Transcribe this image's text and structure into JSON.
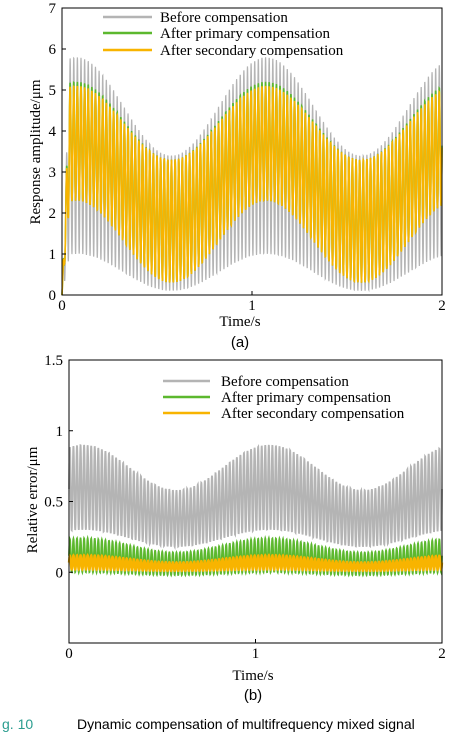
{
  "caption": {
    "fig_label": "g. 10",
    "text": "Dynamic compensation of multifrequency mixed signal",
    "fig_label_color": "#2a9d8f"
  },
  "legend_labels": {
    "before": "Before compensation",
    "primary": "After primary compensation",
    "secondary": "After secondary compensation"
  },
  "colors": {
    "before": "#b4b4b4",
    "primary": "#5cb82e",
    "secondary": "#f8b400"
  },
  "chart_data": [
    {
      "id": "a",
      "type": "line",
      "panel_label": "(a)",
      "xlabel": "Time/s",
      "ylabel": "Response amplitude/μm",
      "xlim": [
        0,
        2
      ],
      "ylim": [
        0,
        7
      ],
      "xticks": [
        0,
        1,
        2
      ],
      "yticks": [
        0,
        1,
        2,
        3,
        4,
        5,
        6,
        7
      ],
      "grid": false,
      "legend_position": "top-left",
      "signal": {
        "slow_period_s": 1,
        "fast_cycles_over_range": 105
      },
      "series": [
        {
          "key": "before",
          "name": "Before compensation",
          "center_range": [
            2.3,
            3.9
          ],
          "upper_peak": 5.8,
          "upper_trough": 3.4,
          "lower_peak": 1.0,
          "lower_trough": 0.1
        },
        {
          "key": "primary",
          "name": "After primary compensation",
          "center_range": [
            1.7,
            3.8
          ],
          "upper_peak": 5.2,
          "upper_trough": 3.3,
          "lower_peak": 2.3,
          "lower_trough": 0.3
        },
        {
          "key": "secondary",
          "name": "After secondary compensation",
          "center_range": [
            1.7,
            3.8
          ],
          "upper_peak": 5.1,
          "upper_trough": 3.3,
          "lower_peak": 2.3,
          "lower_trough": 0.3
        }
      ]
    },
    {
      "id": "b",
      "type": "line",
      "panel_label": "(b)",
      "xlabel": "Time/s",
      "ylabel": "Relative error/μm",
      "xlim": [
        0,
        2
      ],
      "ylim": [
        -0.5,
        1.5
      ],
      "xticks": [
        0,
        1,
        2
      ],
      "yticks": [
        0,
        0.5,
        1,
        1.5
      ],
      "grid": false,
      "legend_position": "top-right",
      "signal": {
        "slow_period_s": 1,
        "fast_cycles_over_range": 105
      },
      "series": [
        {
          "key": "before",
          "name": "Before compensation",
          "center_range": [
            0.38,
            0.6
          ],
          "half_width_range": [
            0.2,
            0.3
          ]
        },
        {
          "key": "primary",
          "name": "After primary compensation",
          "center_range": [
            0.06,
            0.12
          ],
          "half_width_range": [
            0.08,
            0.12
          ]
        },
        {
          "key": "secondary",
          "name": "After secondary compensation",
          "center_range": [
            0.04,
            0.07
          ],
          "half_width_range": [
            0.03,
            0.05
          ]
        }
      ]
    }
  ]
}
